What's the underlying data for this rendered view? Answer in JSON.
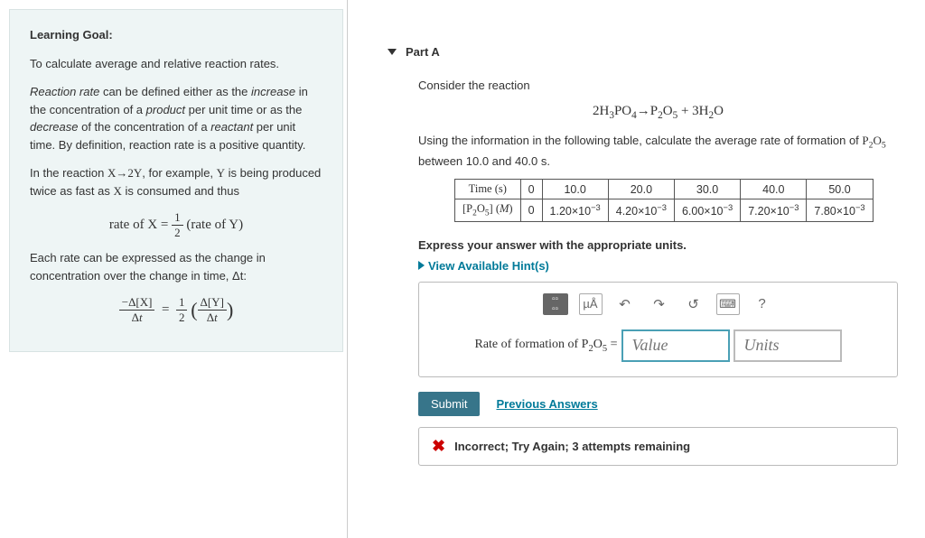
{
  "left": {
    "title": "Learning Goal:",
    "goal": "To calculate average and relative reaction rates.",
    "p1_a": "Reaction rate",
    "p1_b": " can be defined either as the ",
    "p1_c": "increase",
    "p1_d": " in the concentration of a ",
    "p1_e": "product",
    "p1_f": " per unit time or as the ",
    "p1_g": "decrease",
    "p1_h": " of the concentration of a ",
    "p1_i": "reactant",
    "p1_j": " per unit time. By definition, reaction rate is a positive quantity.",
    "p2_a": "In the reaction ",
    "p2_b": ", for example, ",
    "p2_c": " is being produced twice as fast as ",
    "p2_d": " is consumed and thus",
    "eq1_lhs": "rate of X = ",
    "eq1_half_num": "1",
    "eq1_half_den": "2",
    "eq1_rhs": "(rate of Y)",
    "p3": "Each rate can be expressed as the change in concentration over the change in time, Δt:"
  },
  "right": {
    "partLabel": "Part A",
    "consider": "Consider the reaction",
    "reaction_html": "2H₃PO₄ → P₂O₅ + 3H₂O",
    "desc_a": "Using the information in the following table, calculate the average rate of formation of ",
    "desc_b": " between 10.0 and 40.0 s.",
    "table": {
      "row1": [
        "Time (s)",
        "0",
        "10.0",
        "20.0",
        "30.0",
        "40.0",
        "50.0"
      ],
      "row2_label": "[P₂O₅] (M)",
      "row2": [
        "0",
        "1.20×10⁻³",
        "4.20×10⁻³",
        "6.00×10⁻³",
        "7.20×10⁻³",
        "7.80×10⁻³"
      ]
    },
    "instr": "Express your answer with the appropriate units.",
    "hints": "View Available Hint(s)",
    "toolbar": {
      "mu": "µÅ",
      "help": "?"
    },
    "input_label_a": "Rate of formation of P",
    "input_label_b": "O",
    "input_label_c": " = ",
    "value_placeholder": "Value",
    "units_placeholder": "Units",
    "submit": "Submit",
    "prev": "Previous Answers",
    "feedback": "Incorrect; Try Again; 3 attempts remaining"
  },
  "colors": {
    "leftBg": "#eef5f5",
    "accent": "#007a99",
    "submit": "#37758a",
    "error": "#cc0000"
  }
}
